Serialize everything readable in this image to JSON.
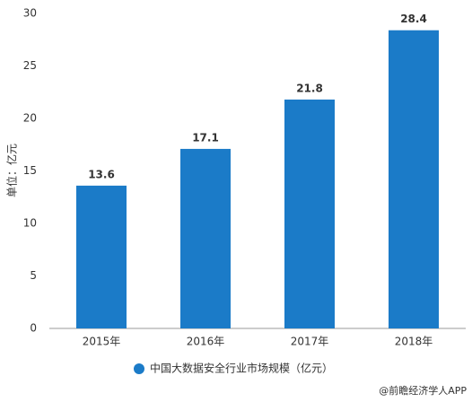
{
  "chart_data": {
    "type": "bar",
    "y_label": "单位：亿元",
    "categories": [
      "2015年",
      "2016年",
      "2017年",
      "2018年"
    ],
    "series": [
      {
        "name": "中国大数据安全行业市场规模（亿元）",
        "color": "#1b7bc8",
        "values": [
          13.6,
          17.1,
          21.8,
          28.4
        ]
      }
    ],
    "ylim": [
      0,
      30
    ],
    "yticks": [
      0,
      5,
      10,
      15,
      20,
      25,
      30
    ],
    "grid": false,
    "legend": "bottom",
    "source": "@前瞻经济学人APP"
  }
}
